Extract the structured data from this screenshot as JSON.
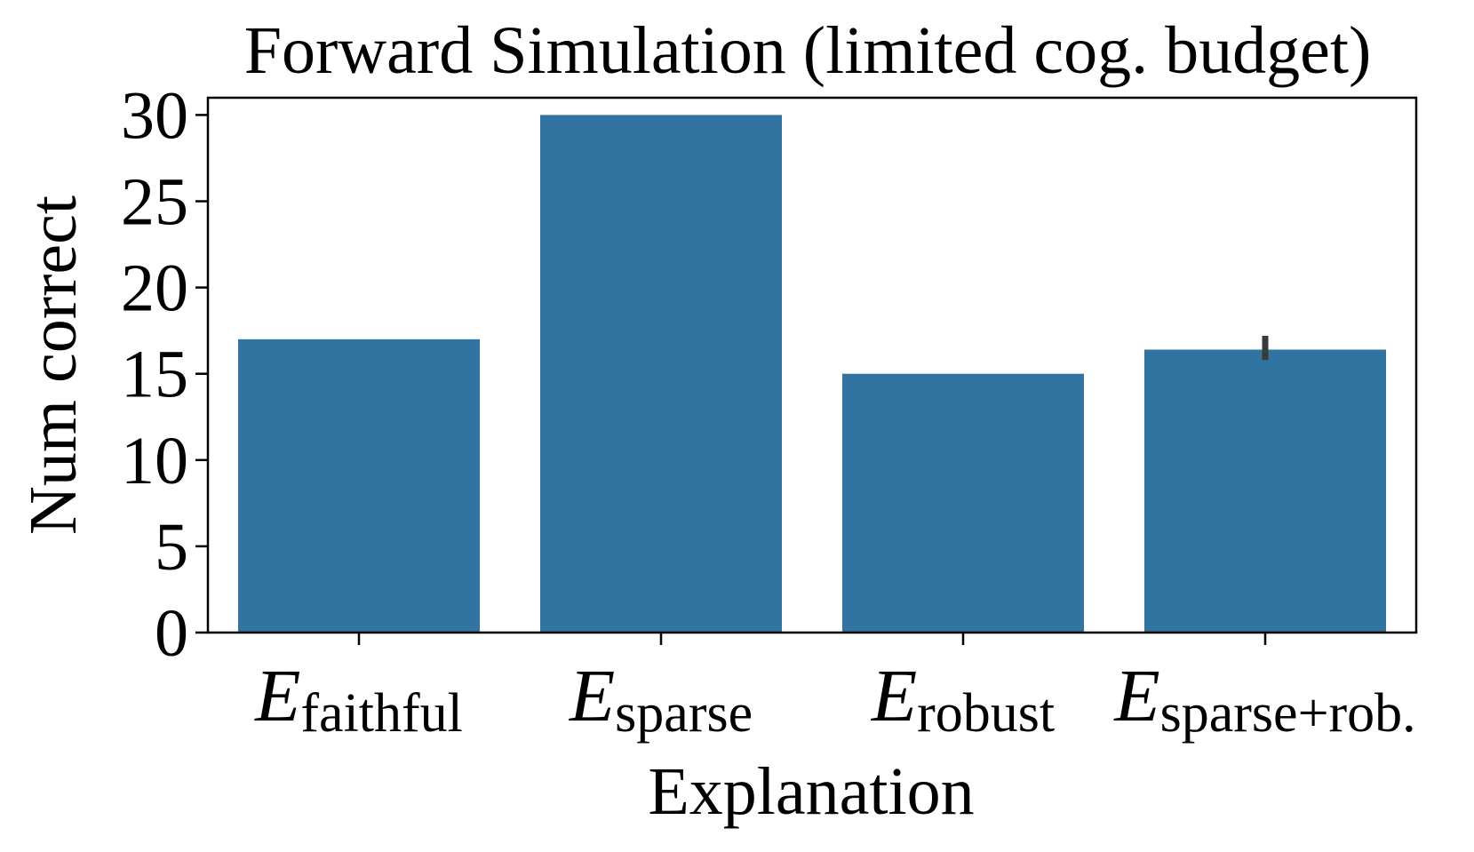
{
  "chart_data": {
    "type": "bar",
    "title": "Forward Simulation (limited cog. budget)",
    "xlabel": "Explanation",
    "ylabel": "Num correct",
    "categories": [
      {
        "main": "E",
        "sub": "faithful"
      },
      {
        "main": "E",
        "sub": "sparse"
      },
      {
        "main": "E",
        "sub": "robust"
      },
      {
        "main": "E",
        "sub": "sparse+rob."
      }
    ],
    "values": [
      17,
      30,
      15,
      16.4
    ],
    "error_bars": [
      null,
      null,
      null,
      [
        15.8,
        17.2
      ]
    ],
    "ylim": [
      0,
      31
    ],
    "yticks": [
      "0",
      "5",
      "10",
      "15",
      "20",
      "25",
      "30"
    ],
    "grid": false,
    "legend": "none",
    "bar_color": "#3274a1",
    "error_color": "#3a3a3a"
  }
}
